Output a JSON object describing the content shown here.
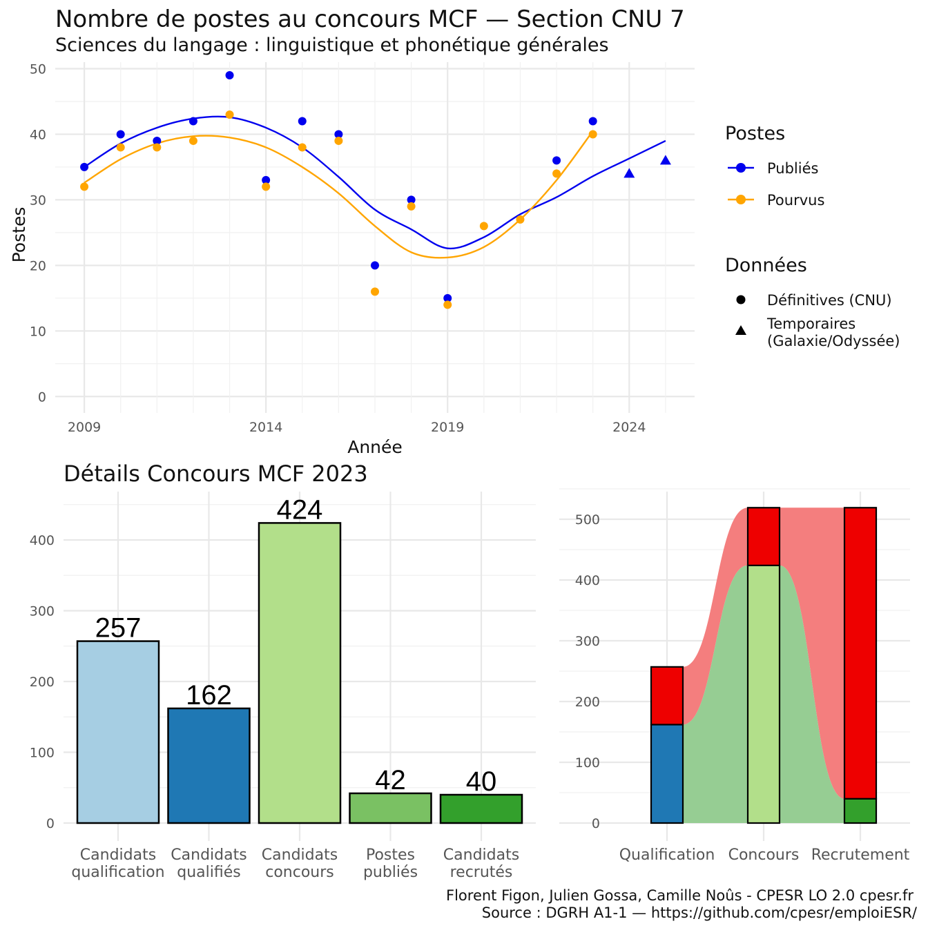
{
  "top_chart": {
    "title": "Nombre de postes au concours MCF —  Section CNU 7",
    "subtitle": "Sciences du langage : linguistique et phonétique générales",
    "xlabel": "Année",
    "ylabel": "Postes",
    "legend": {
      "postes_title": "Postes",
      "postes_items": [
        {
          "label": "Publiés",
          "color": "#0000ee"
        },
        {
          "label": "Pourvus",
          "color": "#ffa500"
        }
      ],
      "donnees_title": "Données",
      "donnees_items": [
        {
          "label": "Définitives (CNU)",
          "shape": "circle"
        },
        {
          "label_line1": "Temporaires",
          "label_line2": "(Galaxie/Odyssée)",
          "shape": "triangle"
        }
      ]
    }
  },
  "bottom_left": {
    "title": "Détails Concours MCF 2023"
  },
  "caption": {
    "line1": "Florent Figon, Julien Gossa, Camille Noûs - CPESR LO 2.0 cpesr.fr",
    "line2": "Source : DGRH A1-1 — https://github.com/cpesr/emploiESR/"
  },
  "chart_data": [
    {
      "type": "scatter",
      "title": "Nombre de postes au concours MCF —  Section CNU 7",
      "subtitle": "Sciences du langage : linguistique et phonétique générales",
      "xlabel": "Année",
      "ylabel": "Postes",
      "x_ticks": [
        2009,
        2014,
        2019,
        2024
      ],
      "y_ticks": [
        0,
        10,
        20,
        30,
        40,
        50
      ],
      "xlim": [
        2008.2,
        2025.8
      ],
      "ylim": [
        -2.5,
        51
      ],
      "grid": true,
      "legend_position": "right",
      "series": [
        {
          "name": "Publiés",
          "color": "#0000ee",
          "definitive": [
            [
              2009,
              35
            ],
            [
              2010,
              40
            ],
            [
              2011,
              39
            ],
            [
              2012,
              42
            ],
            [
              2013,
              49
            ],
            [
              2014,
              33
            ],
            [
              2015,
              42
            ],
            [
              2016,
              40
            ],
            [
              2017,
              20
            ],
            [
              2018,
              30
            ],
            [
              2019,
              15
            ],
            [
              2022,
              36
            ],
            [
              2023,
              42
            ]
          ],
          "temporary": [
            [
              2024,
              34
            ],
            [
              2025,
              36
            ]
          ],
          "smooth": [
            [
              2009,
              35
            ],
            [
              2010,
              38.6
            ],
            [
              2011,
              41
            ],
            [
              2012,
              42.4
            ],
            [
              2013,
              42.6
            ],
            [
              2014,
              41
            ],
            [
              2015,
              38
            ],
            [
              2016,
              33.5
            ],
            [
              2017,
              28.5
            ],
            [
              2018,
              25.5
            ],
            [
              2019,
              22.6
            ],
            [
              2020,
              24.3
            ],
            [
              2021,
              27.8
            ],
            [
              2022,
              30.4
            ],
            [
              2023,
              33.6
            ],
            [
              2024,
              36.3
            ],
            [
              2025,
              39
            ]
          ]
        },
        {
          "name": "Pourvus",
          "color": "#ffa500",
          "definitive": [
            [
              2009,
              32
            ],
            [
              2010,
              38
            ],
            [
              2011,
              38
            ],
            [
              2012,
              39
            ],
            [
              2013,
              43
            ],
            [
              2014,
              32
            ],
            [
              2015,
              38
            ],
            [
              2016,
              39
            ],
            [
              2017,
              16
            ],
            [
              2018,
              29
            ],
            [
              2019,
              14
            ],
            [
              2020,
              26
            ],
            [
              2021,
              27
            ],
            [
              2022,
              34
            ],
            [
              2023,
              40
            ]
          ],
          "temporary": [],
          "smooth": [
            [
              2009,
              32.6
            ],
            [
              2010,
              36.2
            ],
            [
              2011,
              38.6
            ],
            [
              2012,
              39.7
            ],
            [
              2013,
              39.5
            ],
            [
              2014,
              38
            ],
            [
              2015,
              35
            ],
            [
              2016,
              31
            ],
            [
              2017,
              26
            ],
            [
              2018,
              22
            ],
            [
              2019,
              21.2
            ],
            [
              2020,
              22.8
            ],
            [
              2021,
              27
            ],
            [
              2022,
              33
            ],
            [
              2023,
              40.5
            ]
          ]
        }
      ]
    },
    {
      "type": "bar",
      "title": "Détails Concours MCF 2023",
      "categories": [
        {
          "line1": "Candidats",
          "line2": "qualification"
        },
        {
          "line1": "Candidats",
          "line2": "qualifiés"
        },
        {
          "line1": "Candidats",
          "line2": "concours"
        },
        {
          "line1": "Postes",
          "line2": "publiés"
        },
        {
          "line1": "Candidats",
          "line2": "recrutés"
        }
      ],
      "values": [
        257,
        162,
        424,
        42,
        40
      ],
      "colors": [
        "#a6cee3",
        "#1f78b4",
        "#b2df8a",
        "#7ac163",
        "#33a02c"
      ],
      "y_ticks": [
        0,
        100,
        200,
        300,
        400
      ],
      "ylim": [
        0,
        470
      ],
      "grid": true
    },
    {
      "type": "bar",
      "stacked": true,
      "categories": [
        "Qualification",
        "Concours",
        "Recrutement"
      ],
      "y_ticks": [
        0,
        100,
        200,
        300,
        400,
        500
      ],
      "ylim": [
        0,
        545
      ],
      "grid": true,
      "stacks": [
        {
          "bottom": {
            "value": 162,
            "color": "#1f78b4"
          },
          "top": {
            "value": 95,
            "color": "#ee0000"
          }
        },
        {
          "bottom": {
            "value": 424,
            "color": "#b2df8a"
          },
          "top": {
            "value": 95,
            "color": "#ee0000"
          }
        },
        {
          "bottom": {
            "value": 40,
            "color": "#33a02c"
          },
          "top": {
            "value": 479,
            "color": "#ee0000"
          }
        }
      ],
      "flow_colors": {
        "green": "#96cd93",
        "red": "#f47e7e"
      }
    }
  ]
}
